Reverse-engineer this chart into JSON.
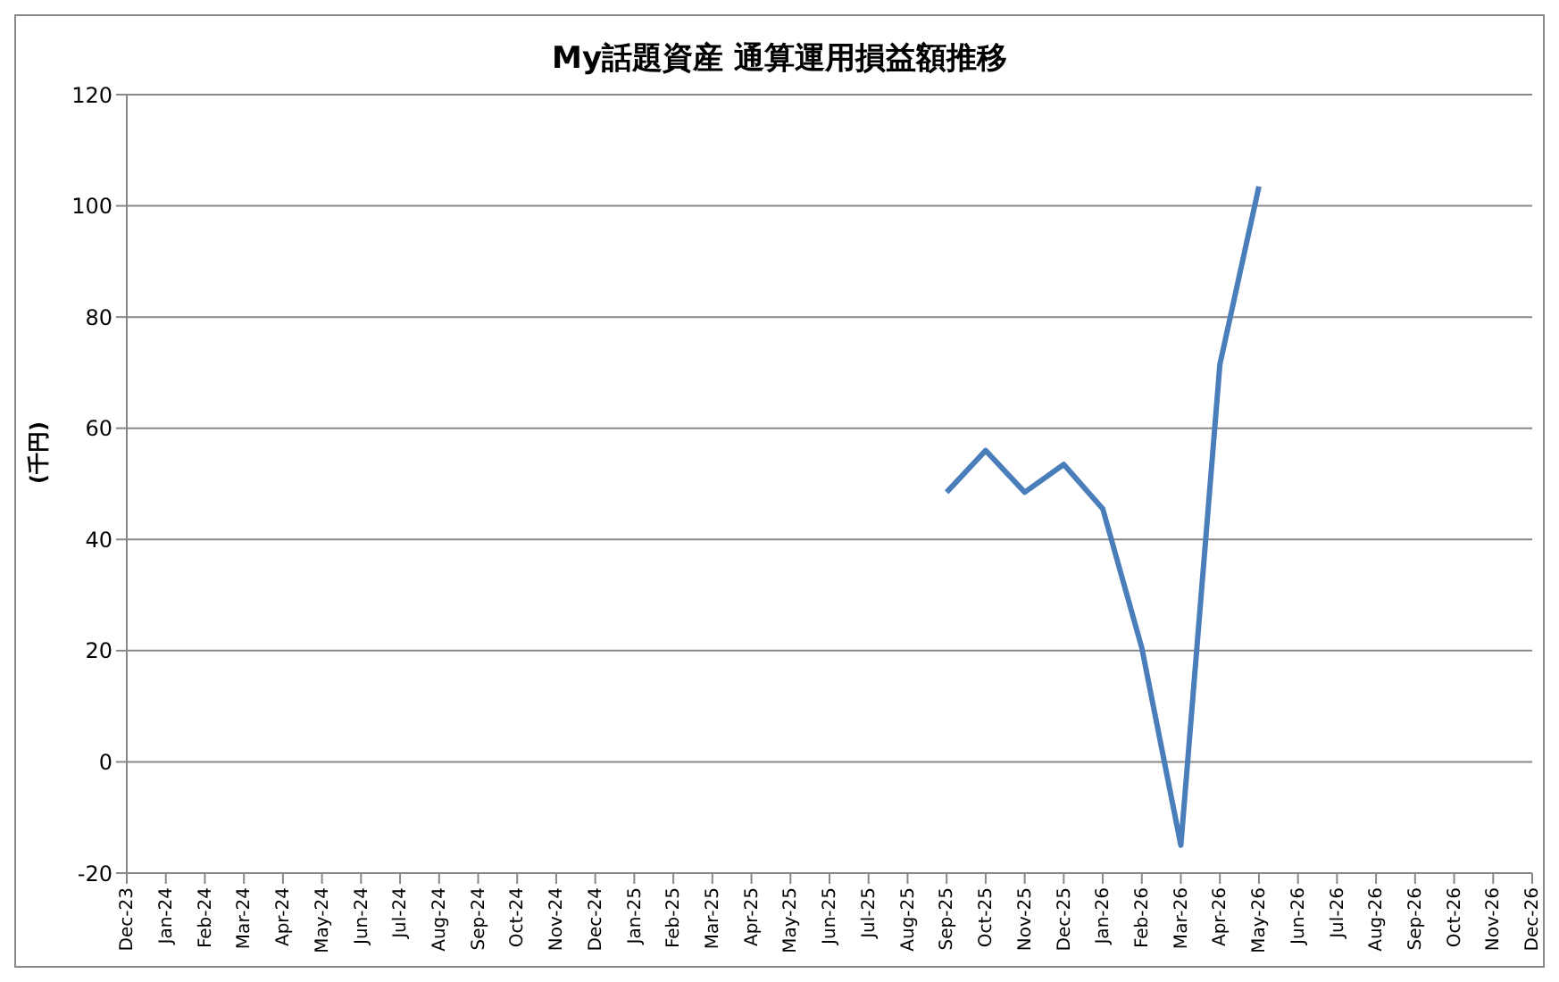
{
  "chart_data": {
    "type": "line",
    "title": "My話題資産 通算運用損益額推移",
    "ylabel": "(千円)",
    "categories": [
      "Dec-23",
      "Jan-24",
      "Feb-24",
      "Mar-24",
      "Apr-24",
      "May-24",
      "Jun-24",
      "Jul-24",
      "Aug-24",
      "Sep-24",
      "Oct-24",
      "Nov-24",
      "Dec-24",
      "Jan-25",
      "Feb-25",
      "Mar-25",
      "Apr-25",
      "May-25",
      "Jun-25",
      "Jul-25",
      "Aug-25",
      "Sep-25",
      "Oct-25",
      "Nov-25",
      "Dec-25",
      "Jan-26",
      "Feb-26",
      "Mar-26",
      "Apr-26",
      "May-26",
      "Jun-26",
      "Jul-26",
      "Aug-26",
      "Sep-26",
      "Oct-26",
      "Nov-26",
      "Dec-26"
    ],
    "series": [
      {
        "color": "#4a7ebb",
        "values": [
          null,
          null,
          null,
          null,
          null,
          null,
          null,
          null,
          null,
          null,
          null,
          null,
          null,
          null,
          null,
          null,
          null,
          null,
          null,
          null,
          null,
          48.5,
          56,
          48.5,
          53.5,
          45.5,
          20.5,
          -15,
          71.5,
          103.5,
          null,
          null,
          null,
          null,
          null,
          null,
          null
        ]
      }
    ],
    "ylim": [
      -20,
      120
    ],
    "yticks": [
      -20,
      0,
      20,
      40,
      60,
      80,
      100,
      120
    ],
    "grid": "y",
    "marker": "none",
    "line_style": "solid"
  }
}
